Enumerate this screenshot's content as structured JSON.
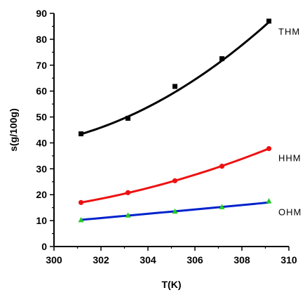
{
  "chart_data": {
    "type": "scatter",
    "xlabel": "T(K)",
    "ylabel": "s(g/100g)",
    "xlim": [
      300,
      310
    ],
    "ylim": [
      0,
      90
    ],
    "x_ticks": [
      "300",
      "302",
      "304",
      "306",
      "308",
      "310"
    ],
    "y_ticks": [
      "0",
      "10",
      "20",
      "30",
      "40",
      "50",
      "60",
      "70",
      "80",
      "90"
    ],
    "grid": false,
    "legend": "none",
    "series": [
      {
        "name": "THM",
        "color": "#000000",
        "marker": "square",
        "x": [
          301.15,
          303.15,
          305.15,
          307.15,
          309.15
        ],
        "y": [
          43.5,
          49.5,
          61.8,
          72.5,
          87.0
        ],
        "fit": [
          43.4,
          49.8,
          59.6,
          72.0,
          86.6
        ]
      },
      {
        "name": "HHM",
        "color": "#ee1111",
        "marker": "circle",
        "x": [
          301.15,
          303.15,
          305.15,
          307.15,
          309.15
        ],
        "y": [
          17.0,
          20.8,
          25.4,
          31.0,
          37.8
        ],
        "fit": [
          17.0,
          20.8,
          25.4,
          31.0,
          37.8
        ]
      },
      {
        "name": "OHM",
        "color": "#0022cc",
        "marker": "triangle",
        "marker_color": "#22cc22",
        "x": [
          301.15,
          303.15,
          305.15,
          307.15,
          309.15
        ],
        "y": [
          10.2,
          12.0,
          13.5,
          15.2,
          17.5
        ],
        "fit": [
          10.3,
          12.0,
          13.6,
          15.3,
          17.0
        ]
      }
    ]
  }
}
